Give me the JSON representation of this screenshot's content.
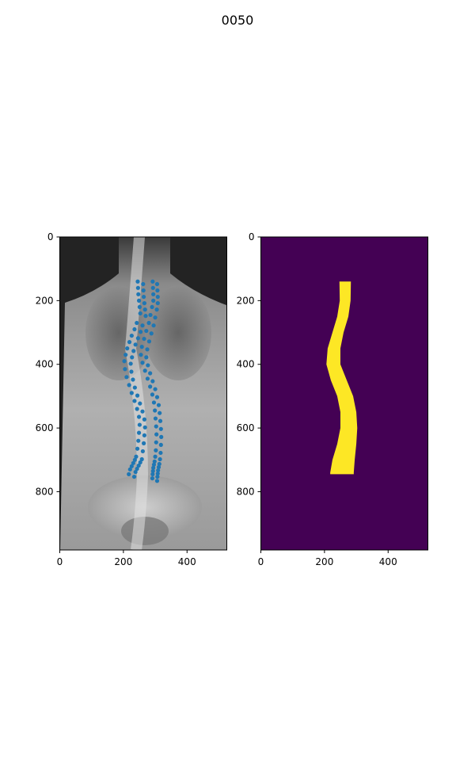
{
  "figure": {
    "title": "0050"
  },
  "chart_data": [
    {
      "type": "scatter",
      "panel": "left",
      "background": "spine X-ray image",
      "point_color": "#1f77b4",
      "xlim": [
        0,
        525
      ],
      "ylim": [
        983,
        0
      ],
      "xticks": [
        0,
        200,
        400
      ],
      "yticks": [
        0,
        200,
        400,
        600,
        800
      ],
      "x": [
        245,
        262,
        246,
        263,
        247,
        264,
        249,
        266,
        251,
        268,
        253,
        270,
        242,
        260,
        235,
        254,
        226,
        246,
        219,
        238,
        212,
        232,
        207,
        227,
        203,
        223,
        205,
        225,
        210,
        230,
        218,
        236,
        226,
        244,
        235,
        252,
        243,
        260,
        249,
        266,
        251,
        268,
        249,
        266,
        247,
        264,
        244,
        261,
        240,
        258,
        236,
        253,
        231,
        248,
        226,
        243,
        221,
        238,
        217,
        234
      ],
      "y": [
        140,
        148,
        160,
        168,
        180,
        188,
        200,
        208,
        220,
        228,
        240,
        248,
        270,
        278,
        290,
        298,
        310,
        318,
        330,
        338,
        350,
        358,
        370,
        378,
        390,
        398,
        415,
        423,
        440,
        448,
        465,
        473,
        490,
        498,
        515,
        523,
        540,
        548,
        565,
        573,
        590,
        598,
        615,
        623,
        640,
        648,
        665,
        673,
        690,
        698,
        700,
        708,
        710,
        718,
        720,
        728,
        730,
        738,
        745,
        753
      ],
      "x_right": [
        292,
        306,
        293,
        307,
        294,
        308,
        294,
        308,
        290,
        305,
        285,
        300,
        280,
        295,
        272,
        288,
        265,
        281,
        258,
        275,
        255,
        272,
        260,
        277,
        268,
        284,
        276,
        292,
        284,
        300,
        291,
        306,
        296,
        311,
        299,
        314,
        301,
        316,
        303,
        318,
        304,
        319,
        303,
        318,
        302,
        317,
        300,
        315,
        298,
        313,
        296,
        311,
        294,
        309,
        293,
        308,
        292,
        307,
        291,
        306
      ],
      "y_right": [
        140,
        148,
        160,
        168,
        180,
        188,
        200,
        208,
        220,
        228,
        245,
        253,
        270,
        278,
        295,
        303,
        320,
        328,
        345,
        353,
        370,
        378,
        395,
        403,
        420,
        428,
        445,
        453,
        470,
        478,
        495,
        503,
        520,
        528,
        545,
        553,
        570,
        578,
        595,
        603,
        620,
        628,
        645,
        653,
        670,
        678,
        690,
        698,
        705,
        713,
        715,
        723,
        725,
        733,
        735,
        743,
        745,
        753,
        758,
        766
      ]
    },
    {
      "type": "heatmap",
      "panel": "right",
      "colormap": "viridis",
      "background_color": "#440154",
      "mask_color": "#fde725",
      "xlim": [
        0,
        525
      ],
      "ylim": [
        983,
        0
      ],
      "xticks": [
        0,
        200,
        400
      ],
      "yticks": [
        0,
        200,
        400,
        600,
        800
      ],
      "mask_outline_left": [
        [
          247,
          140
        ],
        [
          248,
          200
        ],
        [
          240,
          250
        ],
        [
          225,
          300
        ],
        [
          210,
          350
        ],
        [
          206,
          400
        ],
        [
          220,
          450
        ],
        [
          240,
          500
        ],
        [
          250,
          550
        ],
        [
          250,
          600
        ],
        [
          240,
          650
        ],
        [
          225,
          700
        ],
        [
          218,
          740
        ],
        [
          218,
          745
        ]
      ],
      "mask_outline_right": [
        [
          283,
          140
        ],
        [
          282,
          200
        ],
        [
          275,
          250
        ],
        [
          260,
          300
        ],
        [
          250,
          350
        ],
        [
          250,
          400
        ],
        [
          270,
          450
        ],
        [
          290,
          500
        ],
        [
          300,
          550
        ],
        [
          303,
          600
        ],
        [
          300,
          650
        ],
        [
          295,
          700
        ],
        [
          292,
          740
        ],
        [
          292,
          745
        ]
      ]
    }
  ]
}
